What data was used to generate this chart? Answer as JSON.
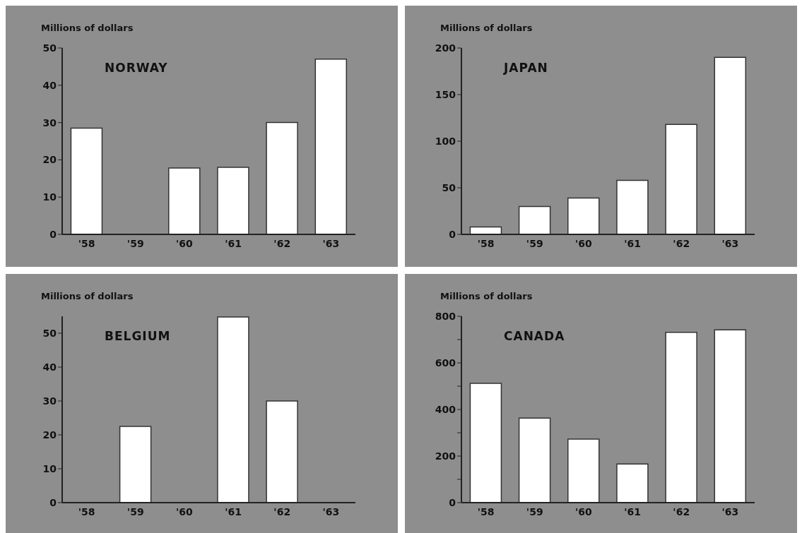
{
  "chart_data": [
    {
      "type": "bar",
      "title": "NORWAY",
      "ylabel": "Millions of dollars",
      "categories": [
        "'58",
        "'59",
        "'60",
        "'61",
        "'62",
        "'63"
      ],
      "values": [
        28.5,
        null,
        17.8,
        18,
        30,
        47
      ],
      "color": "#ffffff",
      "ylim": [
        0,
        50
      ],
      "yticks": [
        0,
        10,
        20,
        30,
        40,
        50
      ]
    },
    {
      "type": "bar",
      "title": "JAPAN",
      "ylabel": "Millions of dollars",
      "categories": [
        "'58",
        "'59",
        "'60",
        "'61",
        "'62",
        "'63"
      ],
      "values": [
        8,
        30,
        39,
        58,
        118,
        190
      ],
      "color": "#ffffff",
      "ylim": [
        0,
        200
      ],
      "yticks": [
        0,
        50,
        100,
        150,
        200
      ]
    },
    {
      "type": "bar",
      "title": "BELGIUM",
      "ylabel": "Millions of dollars",
      "categories": [
        "'58",
        "'59",
        "'60",
        "'61",
        "'62",
        "'63"
      ],
      "values": [
        null,
        22.5,
        null,
        54.8,
        30,
        null
      ],
      "color": "#ffffff",
      "ylim": [
        0,
        55
      ],
      "yticks": [
        0,
        10,
        20,
        30,
        40,
        50
      ]
    },
    {
      "type": "bar",
      "title": "CANADA",
      "ylabel": "Millions of dollars",
      "categories": [
        "'58",
        "'59",
        "'60",
        "'61",
        "'62",
        "'63"
      ],
      "values": [
        512,
        363,
        273,
        166,
        731,
        742
      ],
      "color": "#ffffff",
      "ylim": [
        0,
        800
      ],
      "yticks": [
        0,
        {
          "value": 100,
          "label": null
        },
        200,
        {
          "value": 300,
          "label": null
        },
        400,
        {
          "value": 500,
          "label": null
        },
        600,
        {
          "value": 700,
          "label": null
        },
        800
      ]
    }
  ]
}
